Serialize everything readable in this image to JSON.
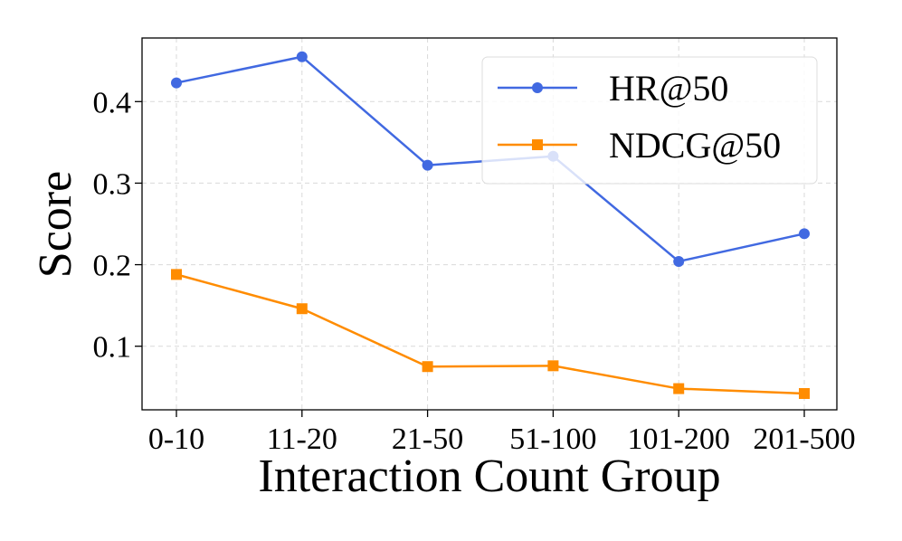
{
  "chart_data": {
    "type": "line",
    "title": "",
    "xlabel": "Interaction Count Group",
    "ylabel": "Score",
    "categories": [
      "0-10",
      "11-20",
      "21-50",
      "51-100",
      "101-200",
      "201-500"
    ],
    "series": [
      {
        "name": "HR@50",
        "values": [
          0.423,
          0.455,
          0.322,
          0.333,
          0.204,
          0.238
        ],
        "color": "#4169e1",
        "marker": "circle"
      },
      {
        "name": "NDCG@50",
        "values": [
          0.188,
          0.146,
          0.075,
          0.076,
          0.048,
          0.042
        ],
        "color": "#ff8c00",
        "marker": "square"
      }
    ],
    "ylim": [
      0.022,
      0.478
    ],
    "yticks": [
      "0.1",
      "0.2",
      "0.3",
      "0.4"
    ],
    "grid": true,
    "legend_position": "top-right"
  }
}
